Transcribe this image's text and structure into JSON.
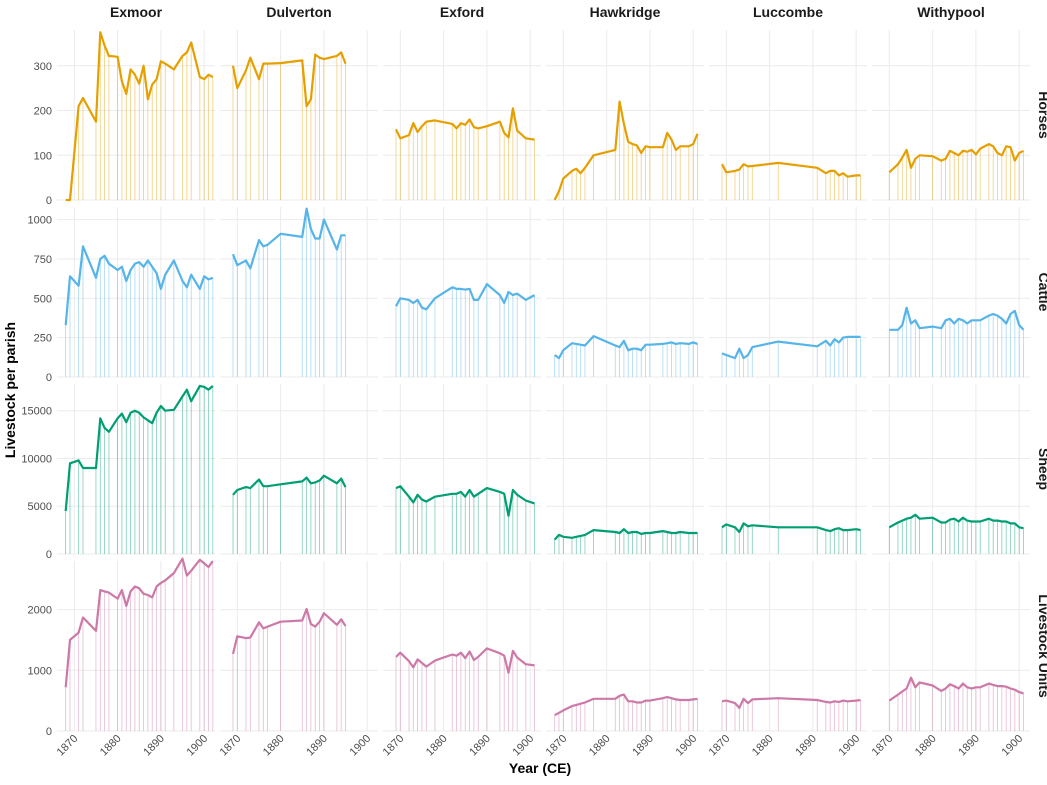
{
  "chart_data": {
    "type": "line",
    "x_label": "Year (CE)",
    "y_label": "Livestock per parish",
    "xlim": [
      1866,
      1902.5
    ],
    "xticks": [
      1870,
      1880,
      1890,
      1900
    ],
    "grid": true,
    "columns": [
      {
        "name": "Exmoor",
        "x": [
          1868,
          1869,
          1871,
          1872,
          1875,
          1876,
          1877,
          1878,
          1880,
          1881,
          1882,
          1883,
          1884,
          1885,
          1886,
          1887,
          1888,
          1889,
          1890,
          1891,
          1893,
          1895,
          1896,
          1897,
          1899,
          1900,
          1901,
          1902
        ]
      },
      {
        "name": "Dulverton",
        "x": [
          1869,
          1870,
          1872,
          1873,
          1875,
          1876,
          1877,
          1880,
          1885,
          1886,
          1887,
          1888,
          1889,
          1890,
          1893,
          1894,
          1895
        ]
      },
      {
        "name": "Exford",
        "x": [
          1869,
          1870,
          1872,
          1873,
          1874,
          1875,
          1876,
          1878,
          1882,
          1883,
          1884,
          1885,
          1886,
          1887,
          1888,
          1890,
          1893,
          1894,
          1895,
          1896,
          1897,
          1899,
          1901
        ]
      },
      {
        "name": "Hawkridge",
        "x": [
          1868,
          1869,
          1870,
          1872,
          1873,
          1874,
          1875,
          1877,
          1882,
          1883,
          1884,
          1885,
          1886,
          1887,
          1888,
          1889,
          1890,
          1893,
          1894,
          1895,
          1896,
          1897,
          1899,
          1900,
          1901
        ]
      },
      {
        "name": "Luccombe",
        "x": [
          1869,
          1870,
          1872,
          1873,
          1874,
          1875,
          1876,
          1882,
          1891,
          1893,
          1894,
          1895,
          1896,
          1897,
          1898,
          1900,
          1901
        ]
      },
      {
        "name": "Withypool",
        "x": [
          1870,
          1872,
          1873,
          1874,
          1875,
          1876,
          1877,
          1880,
          1882,
          1883,
          1884,
          1885,
          1886,
          1887,
          1888,
          1889,
          1890,
          1891,
          1893,
          1894,
          1895,
          1896,
          1897,
          1898,
          1899,
          1900,
          1901
        ]
      }
    ],
    "rows": [
      {
        "name": "Horses",
        "color": "#E69F00",
        "ylim": [
          0,
          380
        ],
        "yticks": [
          0,
          100,
          200,
          300
        ],
        "panels": [
          {
            "values": [
              0,
              0,
              210,
              228,
              175,
              375,
              345,
              322,
              320,
              265,
              237,
              292,
              280,
              260,
              300,
              225,
              258,
              270,
              310,
              305,
              292,
              322,
              330,
              352,
              275,
              270,
              280,
              275
            ]
          },
          {
            "values": [
              300,
              250,
              290,
              318,
              270,
              305,
              305,
              306,
              312,
              210,
              225,
              325,
              318,
              315,
              322,
              330,
              305
            ]
          },
          {
            "values": [
              158,
              138,
              145,
              172,
              152,
              165,
              175,
              178,
              170,
              160,
              172,
              168,
              180,
              163,
              160,
              165,
              175,
              150,
              140,
              205,
              155,
              138,
              135
            ]
          },
          {
            "values": [
              0,
              20,
              48,
              65,
              70,
              60,
              72,
              100,
              112,
              220,
              170,
              130,
              125,
              122,
              105,
              120,
              118,
              118,
              150,
              135,
              112,
              120,
              120,
              125,
              148
            ]
          },
          {
            "values": [
              80,
              62,
              65,
              68,
              80,
              75,
              76,
              83,
              72,
              60,
              65,
              65,
              55,
              60,
              52,
              55,
              55
            ]
          },
          {
            "values": [
              62,
              80,
              95,
              112,
              72,
              92,
              100,
              98,
              88,
              92,
              110,
              105,
              100,
              110,
              108,
              112,
              102,
              115,
              125,
              120,
              105,
              100,
              120,
              118,
              88,
              105,
              110
            ]
          }
        ]
      },
      {
        "name": "Cattle",
        "color": "#56B4E9",
        "ylim": [
          0,
          1080
        ],
        "yticks": [
          0,
          250,
          500,
          750,
          1000
        ],
        "panels": [
          {
            "values": [
              330,
              640,
              580,
              830,
              630,
              750,
              770,
              720,
              680,
              700,
              610,
              680,
              720,
              730,
              700,
              740,
              700,
              660,
              560,
              650,
              740,
              610,
              570,
              650,
              560,
              640,
              620,
              630
            ]
          },
          {
            "values": [
              780,
              710,
              740,
              690,
              870,
              830,
              840,
              910,
              890,
              1070,
              940,
              880,
              880,
              1000,
              810,
              900,
              900
            ]
          },
          {
            "values": [
              450,
              500,
              490,
              470,
              490,
              440,
              430,
              500,
              570,
              560,
              560,
              555,
              560,
              490,
              490,
              590,
              520,
              470,
              540,
              520,
              530,
              490,
              520
            ]
          },
          {
            "values": [
              140,
              120,
              170,
              215,
              210,
              205,
              200,
              260,
              200,
              190,
              230,
              170,
              180,
              180,
              170,
              205,
              205,
              210,
              215,
              220,
              210,
              215,
              210,
              220,
              210
            ]
          },
          {
            "values": [
              150,
              140,
              120,
              180,
              120,
              140,
              190,
              225,
              195,
              230,
              200,
              240,
              220,
              250,
              255,
              255,
              255
            ]
          },
          {
            "values": [
              300,
              300,
              330,
              440,
              340,
              360,
              310,
              320,
              310,
              360,
              370,
              340,
              370,
              360,
              340,
              360,
              360,
              360,
              390,
              400,
              390,
              370,
              340,
              400,
              420,
              330,
              300
            ]
          }
        ]
      },
      {
        "name": "Sheep",
        "color": "#009E73",
        "ylim": [
          0,
          17800
        ],
        "yticks": [
          0,
          5000,
          10000,
          15000
        ],
        "panels": [
          {
            "values": [
              4500,
              9500,
              9800,
              9000,
              9000,
              14200,
              13200,
              12800,
              14200,
              14700,
              13800,
              14800,
              15000,
              14800,
              14300,
              14000,
              13700,
              14800,
              15500,
              15000,
              15100,
              16500,
              17200,
              16000,
              17600,
              17500,
              17200,
              17600
            ]
          },
          {
            "values": [
              6200,
              6700,
              7000,
              6900,
              7800,
              7100,
              7100,
              7300,
              7600,
              8000,
              7400,
              7500,
              7700,
              8200,
              7400,
              7900,
              7000
            ]
          },
          {
            "values": [
              6900,
              7100,
              6000,
              5400,
              6200,
              5700,
              5500,
              6000,
              6300,
              6300,
              6500,
              6000,
              6700,
              6000,
              6300,
              6900,
              6500,
              6300,
              4000,
              6700,
              6200,
              5600,
              5300
            ]
          },
          {
            "values": [
              1500,
              2000,
              1800,
              1700,
              1800,
              1900,
              2000,
              2500,
              2300,
              2200,
              2600,
              2200,
              2300,
              2300,
              2100,
              2200,
              2200,
              2400,
              2300,
              2200,
              2200,
              2300,
              2200,
              2200,
              2200
            ]
          },
          {
            "values": [
              2800,
              3100,
              2800,
              2300,
              3200,
              2900,
              3000,
              2800,
              2800,
              2500,
              2400,
              2600,
              2700,
              2500,
              2500,
              2600,
              2500
            ]
          },
          {
            "values": [
              2800,
              3300,
              3500,
              3700,
              3800,
              4100,
              3700,
              3800,
              3300,
              3300,
              3600,
              3700,
              3400,
              3800,
              3500,
              3400,
              3400,
              3400,
              3700,
              3500,
              3500,
              3400,
              3400,
              3200,
              3200,
              2800,
              2700
            ]
          }
        ]
      },
      {
        "name": "Livestock Units",
        "color": "#CC79A7",
        "ylim": [
          0,
          2800
        ],
        "yticks": [
          0,
          1000,
          2000
        ],
        "panels": [
          {
            "values": [
              720,
              1500,
              1620,
              1870,
              1650,
              2320,
              2300,
              2280,
              2180,
              2320,
              2060,
              2300,
              2380,
              2350,
              2260,
              2240,
              2200,
              2380,
              2440,
              2480,
              2600,
              2840,
              2560,
              2640,
              2820,
              2760,
              2700,
              2800
            ]
          },
          {
            "values": [
              1270,
              1560,
              1530,
              1540,
              1790,
              1690,
              1720,
              1800,
              1820,
              2010,
              1760,
              1720,
              1800,
              1940,
              1750,
              1840,
              1730
            ]
          },
          {
            "values": [
              1220,
              1290,
              1150,
              1050,
              1180,
              1120,
              1060,
              1160,
              1260,
              1240,
              1290,
              1200,
              1310,
              1170,
              1220,
              1360,
              1280,
              1240,
              960,
              1320,
              1210,
              1100,
              1080
            ]
          },
          {
            "values": [
              260,
              300,
              340,
              410,
              430,
              450,
              470,
              530,
              530,
              580,
              600,
              490,
              490,
              470,
              470,
              500,
              500,
              540,
              560,
              540,
              520,
              510,
              510,
              520,
              530
            ]
          },
          {
            "values": [
              490,
              500,
              460,
              380,
              530,
              460,
              520,
              540,
              510,
              480,
              470,
              490,
              480,
              500,
              490,
              500,
              510
            ]
          },
          {
            "values": [
              500,
              600,
              650,
              700,
              880,
              720,
              800,
              750,
              660,
              700,
              770,
              740,
              700,
              780,
              720,
              700,
              720,
              720,
              780,
              760,
              740,
              740,
              730,
              700,
              680,
              640,
              620
            ]
          }
        ]
      }
    ]
  }
}
